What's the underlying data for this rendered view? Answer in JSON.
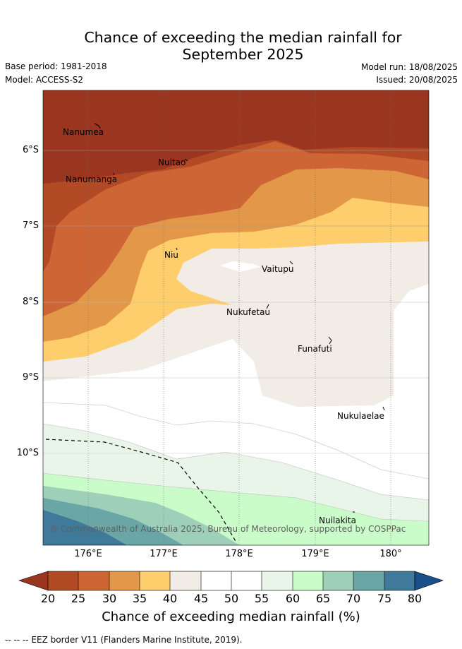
{
  "title_line1": "Chance of exceeding the median rainfall for",
  "title_line2": "September 2025",
  "base_period": "Base period: 1981-2018",
  "model": "Model: ACCESS-S2",
  "model_run": "Model run: 18/08/2025",
  "issued": "Issued: 20/08/2025",
  "map": {
    "lat_labels": [
      "6°S",
      "7°S",
      "8°S",
      "9°S",
      "10°S"
    ],
    "lon_labels": [
      "176°E",
      "177°E",
      "178°E",
      "179°E",
      "180°"
    ],
    "places": [
      "Nanumea",
      "Nuitao",
      "Nanumanga",
      "Niu",
      "Vaitupu",
      "Nukufetau",
      "Funafuti",
      "Nukulaelae",
      "Nuilakita"
    ],
    "copyright": "© Commonwealth of Australia 2025, Bureau of Meteorology, supported by COSPPac"
  },
  "colorbar": {
    "ticks": [
      "20",
      "25",
      "30",
      "35",
      "40",
      "45",
      "50",
      "55",
      "60",
      "65",
      "70",
      "75",
      "80"
    ],
    "colors": [
      "#9a3520",
      "#b24a26",
      "#cd6535",
      "#e39749",
      "#fece6c",
      "#f1ece6",
      "#ffffff",
      "#ffffff",
      "#eaf5ea",
      "#cafcca",
      "#9ecfb8",
      "#6aa6a6",
      "#3f7a9a",
      "#1a4f8a"
    ],
    "title": "Chance of exceeding median rainfall (%)"
  },
  "footer": "-- -- -- EEZ border V11 (Flanders Marine Institute, 2019)."
}
